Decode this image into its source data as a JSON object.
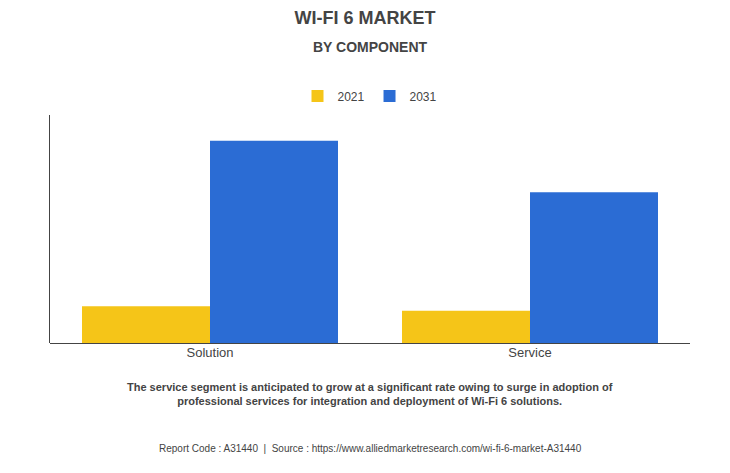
{
  "chart_data": {
    "type": "bar",
    "title": "WI-FI 6 MARKET",
    "subtitle": "BY COMPONENT",
    "categories": [
      "Solution",
      "Service"
    ],
    "series": [
      {
        "name": "2021",
        "color": "#F5C518",
        "values": [
          1.0,
          0.88
        ]
      },
      {
        "name": "2031",
        "color": "#2B6CD4",
        "values": [
          5.5,
          4.1
        ]
      }
    ],
    "ylim": [
      0,
      6.2
    ],
    "yticks": [],
    "grid": false,
    "tick_labels": "x",
    "legend": "top",
    "annotations": [
      "The service segment is anticipated to grow at a significant rate owing to surge in adoption of\nprofessional services for integration and deployment of Wi-Fi 6 solutions.",
      "Report Code : A31440  |  Source : https://www.alliedmarketresearch.com/wi-fi-6-market-A31440"
    ]
  }
}
